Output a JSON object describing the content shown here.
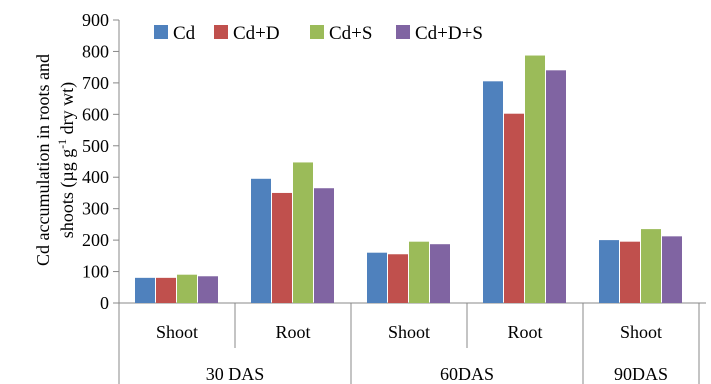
{
  "chart_data": {
    "type": "bar",
    "ylabel_lines": [
      "Cd accumulation in roots and",
      "shoots (µg g-1 dry wt)"
    ],
    "ylabel_line2_parts": {
      "before": "shoots (µg g",
      "sup": "-1",
      "after": " dry wt)"
    },
    "ylim": [
      0,
      900
    ],
    "yticks": [
      0,
      100,
      200,
      300,
      400,
      500,
      600,
      700,
      800,
      900
    ],
    "grid": false,
    "legend_position": "top",
    "categories": [
      "Shoot",
      "Root",
      "Shoot",
      "Root",
      "Shoot"
    ],
    "groups": [
      {
        "label": "30 DAS",
        "span": 2
      },
      {
        "label": "60DAS",
        "span": 2
      },
      {
        "label": "90DAS",
        "span": 1
      }
    ],
    "series": [
      {
        "name": "Cd",
        "color": "#4f81bd",
        "values": [
          80,
          395,
          160,
          705,
          200
        ]
      },
      {
        "name": "Cd+D",
        "color": "#c0504d",
        "values": [
          80,
          350,
          155,
          602,
          195
        ]
      },
      {
        "name": "Cd+S",
        "color": "#9bbb59",
        "values": [
          90,
          447,
          195,
          787,
          235
        ]
      },
      {
        "name": "Cd+D+S",
        "color": "#8064a2",
        "values": [
          85,
          365,
          187,
          740,
          212
        ]
      }
    ]
  }
}
